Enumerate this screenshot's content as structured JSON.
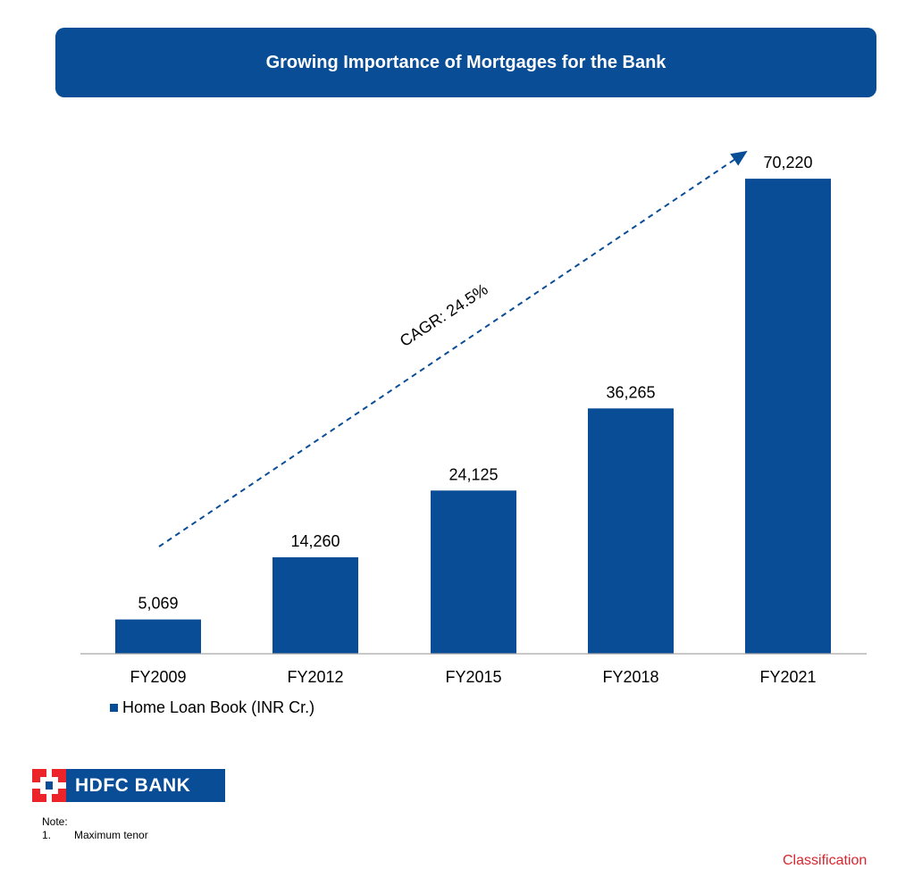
{
  "title": "Growing Importance  of Mortgages for the Bank",
  "chart_data": {
    "type": "bar",
    "categories": [
      "FY2009",
      "FY2012",
      "FY2015",
      "FY2018",
      "FY2021"
    ],
    "series": [
      {
        "name": "Home Loan Book (INR Cr.)",
        "values": [
          5069,
          14260,
          24125,
          36265,
          70220
        ]
      }
    ],
    "data_labels": [
      "5,069",
      "14,260",
      "24,125",
      "36,265",
      "70,220"
    ],
    "annotation": "CAGR: 24.5%",
    "bar_color": "#0a4d97",
    "ylim": [
      0,
      80000
    ],
    "grid": false,
    "legend_position": "bottom-left"
  },
  "logo_text": "HDFC BANK",
  "note": {
    "heading": "Note:",
    "items": [
      {
        "num": "1.",
        "text": "Maximum tenor"
      }
    ]
  },
  "classification": "Classification"
}
